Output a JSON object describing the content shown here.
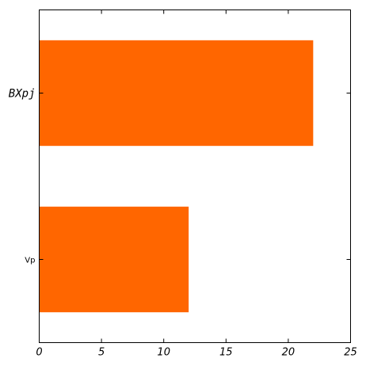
{
  "chart_data": {
    "type": "bar",
    "orientation": "horizontal",
    "categories": [
      "Vp",
      "BXpj"
    ],
    "values": [
      12,
      22
    ],
    "xlim": [
      0,
      25
    ],
    "xticks": [
      "0",
      "5",
      "10",
      "15",
      "20",
      "25"
    ],
    "bar_color": "#ff6600",
    "grid": false,
    "title": "",
    "xlabel": "",
    "ylabel": ""
  }
}
